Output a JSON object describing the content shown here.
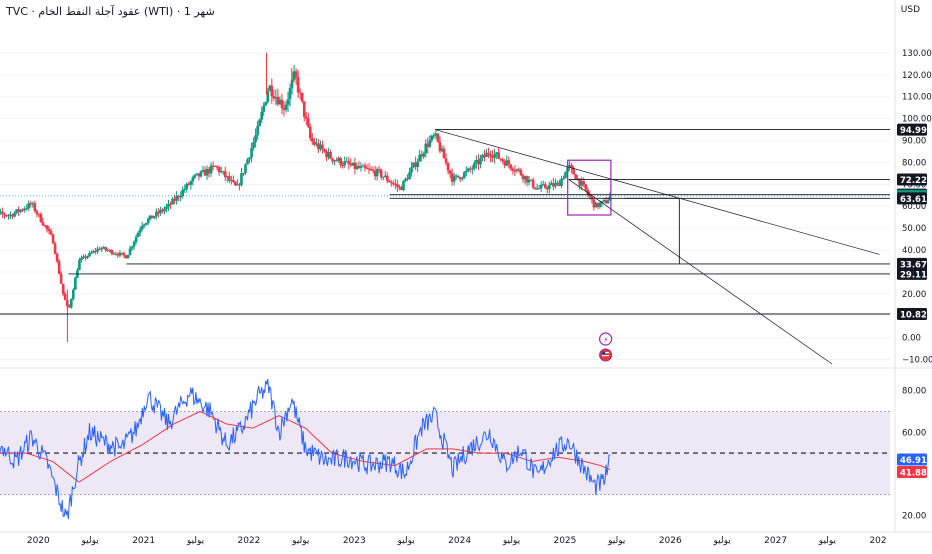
{
  "header": {
    "title": "TVC · عقود آجلة النفط الخام (WTI) · 1 شهر",
    "currency": "USD"
  },
  "colors": {
    "up": "#089981",
    "down": "#f23645",
    "rsi_line": "#2962ff",
    "rsi_ma": "#f23645",
    "rsi_band": "#ede7f6",
    "box": "#9c27b0",
    "current": "#089981"
  },
  "chart_data": [
    {
      "type": "candlestick",
      "title": "",
      "y_axis": {
        "ylim": [
          -12,
          145
        ],
        "ticks": [
          "130.00",
          "120.00",
          "110.00",
          "100.00",
          "90.00",
          "80.00",
          "70.00",
          "60.00",
          "50.00",
          "40.00",
          "30.00",
          "20.00",
          "10.00",
          "0.00",
          "−10.00"
        ],
        "tick_values": [
          130,
          120,
          110,
          100,
          90,
          80,
          70,
          60,
          50,
          40,
          30,
          20,
          10,
          0,
          -10
        ]
      },
      "x_axis": {
        "labels": [
          "2020",
          "يوليو",
          "2021",
          "يوليو",
          "2022",
          "يوليو",
          "2023",
          "يوليو",
          "2024",
          "يوليو",
          "2025",
          "يوليو",
          "2026",
          "يوليو",
          "2027",
          "يوليو",
          "202"
        ],
        "label_times": [
          2020.0,
          2020.5,
          2021.0,
          2021.5,
          2022.0,
          2022.5,
          2023.0,
          2023.5,
          2024.0,
          2024.5,
          2025.0,
          2025.5,
          2026.0,
          2026.5,
          2027.0,
          2027.5,
          2028.0
        ]
      },
      "key_points": [
        {
          "t": 2019.5,
          "v": 57
        },
        {
          "t": 2019.75,
          "v": 56
        },
        {
          "t": 2019.95,
          "v": 61
        },
        {
          "t": 2020.15,
          "v": 45
        },
        {
          "t": 2020.25,
          "v": 20
        },
        {
          "t": 2020.3,
          "v": 12
        },
        {
          "t": 2020.4,
          "v": 35
        },
        {
          "t": 2020.6,
          "v": 41
        },
        {
          "t": 2020.85,
          "v": 37
        },
        {
          "t": 2021.0,
          "v": 52
        },
        {
          "t": 2021.25,
          "v": 60
        },
        {
          "t": 2021.5,
          "v": 73
        },
        {
          "t": 2021.7,
          "v": 78
        },
        {
          "t": 2021.9,
          "v": 68
        },
        {
          "t": 2022.1,
          "v": 95
        },
        {
          "t": 2022.2,
          "v": 115
        },
        {
          "t": 2022.35,
          "v": 105
        },
        {
          "t": 2022.45,
          "v": 120
        },
        {
          "t": 2022.6,
          "v": 90
        },
        {
          "t": 2022.8,
          "v": 82
        },
        {
          "t": 2023.0,
          "v": 78
        },
        {
          "t": 2023.25,
          "v": 75
        },
        {
          "t": 2023.45,
          "v": 68
        },
        {
          "t": 2023.7,
          "v": 88
        },
        {
          "t": 2023.78,
          "v": 92
        },
        {
          "t": 2023.95,
          "v": 72
        },
        {
          "t": 2024.1,
          "v": 76
        },
        {
          "t": 2024.3,
          "v": 85
        },
        {
          "t": 2024.55,
          "v": 77
        },
        {
          "t": 2024.75,
          "v": 68
        },
        {
          "t": 2024.95,
          "v": 70
        },
        {
          "t": 2025.05,
          "v": 78
        },
        {
          "t": 2025.2,
          "v": 68
        },
        {
          "t": 2025.3,
          "v": 60
        },
        {
          "t": 2025.4,
          "v": 62
        },
        {
          "t": 2025.45,
          "v": 64.73
        }
      ],
      "wicks": [
        {
          "t": 2020.29,
          "low": -2,
          "high": 22
        },
        {
          "t": 2022.18,
          "high": 130
        },
        {
          "t": 2022.42,
          "high": 123
        }
      ],
      "price_labels": [
        {
          "text": "94.99",
          "value": 94.99,
          "kind": "level"
        },
        {
          "text": "72.22",
          "value": 72.22,
          "kind": "level"
        },
        {
          "text": "65.29",
          "value": 65.29,
          "kind": "level"
        },
        {
          "text": "64.73",
          "value": 64.73,
          "kind": "current"
        },
        {
          "text": "63.61",
          "value": 63.61,
          "kind": "level"
        },
        {
          "text": "33.67",
          "value": 33.67,
          "kind": "level"
        },
        {
          "text": "29.11",
          "value": 29.11,
          "kind": "level"
        },
        {
          "text": "10.82",
          "value": 10.82,
          "kind": "level"
        }
      ],
      "horizontal_levels": [
        {
          "from_t": 2023.78,
          "value": 94.99
        },
        {
          "from_t": 2025.05,
          "value": 72.22
        },
        {
          "from_t": 2023.35,
          "value": 65.29
        },
        {
          "from_t": 2023.35,
          "value": 63.61
        },
        {
          "from_t": 2020.85,
          "value": 33.67
        },
        {
          "from_t": 2020.3,
          "value": 29.11
        },
        {
          "from_t": 2019.5,
          "value": 10.82
        }
      ],
      "trend_lines": [
        {
          "t1": 2023.78,
          "v1": 94.99,
          "t2": 2028.0,
          "v2": 38
        },
        {
          "t1": 2025.05,
          "v1": 72.22,
          "t2": 2027.55,
          "v2": -12
        }
      ],
      "measure_line": {
        "t": 2026.1,
        "v1": 63.61,
        "v2": 33.67
      },
      "highlight_box": {
        "t1": 2025.04,
        "t2": 2025.45,
        "v1": 56,
        "v2": 81
      },
      "icons": [
        "lightning-icon",
        "us-flag-icon"
      ]
    },
    {
      "type": "line",
      "name": "RSI",
      "y_axis": {
        "ylim": [
          14,
          88
        ],
        "ticks": [
          "80.00",
          "60.00",
          "20.00"
        ],
        "tick_values": [
          80,
          60,
          20
        ],
        "band": [
          30,
          70
        ],
        "mid": 50
      },
      "series": [
        {
          "values_key_points": [
            {
              "t": 2019.5,
              "v": 48
            },
            {
              "t": 2019.65,
              "v": 54
            },
            {
              "t": 2019.8,
              "v": 46
            },
            {
              "t": 2019.95,
              "v": 58
            },
            {
              "t": 2020.1,
              "v": 45
            },
            {
              "t": 2020.2,
              "v": 30
            },
            {
              "t": 2020.28,
              "v": 18
            },
            {
              "t": 2020.38,
              "v": 42
            },
            {
              "t": 2020.5,
              "v": 60
            },
            {
              "t": 2020.65,
              "v": 55
            },
            {
              "t": 2020.8,
              "v": 52
            },
            {
              "t": 2020.95,
              "v": 62
            },
            {
              "t": 2021.05,
              "v": 78
            },
            {
              "t": 2021.25,
              "v": 64
            },
            {
              "t": 2021.45,
              "v": 79
            },
            {
              "t": 2021.65,
              "v": 70
            },
            {
              "t": 2021.8,
              "v": 54
            },
            {
              "t": 2021.95,
              "v": 62
            },
            {
              "t": 2022.1,
              "v": 77
            },
            {
              "t": 2022.2,
              "v": 82
            },
            {
              "t": 2022.3,
              "v": 60
            },
            {
              "t": 2022.42,
              "v": 76
            },
            {
              "t": 2022.55,
              "v": 52
            },
            {
              "t": 2022.75,
              "v": 46
            },
            {
              "t": 2022.95,
              "v": 48
            },
            {
              "t": 2023.15,
              "v": 44
            },
            {
              "t": 2023.35,
              "v": 46
            },
            {
              "t": 2023.5,
              "v": 40
            },
            {
              "t": 2023.65,
              "v": 62
            },
            {
              "t": 2023.78,
              "v": 68
            },
            {
              "t": 2023.95,
              "v": 42
            },
            {
              "t": 2024.1,
              "v": 52
            },
            {
              "t": 2024.3,
              "v": 60
            },
            {
              "t": 2024.45,
              "v": 44
            },
            {
              "t": 2024.6,
              "v": 52
            },
            {
              "t": 2024.75,
              "v": 38
            },
            {
              "t": 2024.9,
              "v": 50
            },
            {
              "t": 2025.05,
              "v": 56
            },
            {
              "t": 2025.2,
              "v": 42
            },
            {
              "t": 2025.3,
              "v": 34
            },
            {
              "t": 2025.38,
              "v": 36
            },
            {
              "t": 2025.45,
              "v": 46.91
            }
          ],
          "last_label": "46.91"
        },
        {
          "name": "MA",
          "values_key_points": [
            {
              "t": 2019.5,
              "v": 50
            },
            {
              "t": 2019.9,
              "v": 50
            },
            {
              "t": 2020.15,
              "v": 46
            },
            {
              "t": 2020.4,
              "v": 36
            },
            {
              "t": 2020.7,
              "v": 46
            },
            {
              "t": 2021.0,
              "v": 54
            },
            {
              "t": 2021.3,
              "v": 64
            },
            {
              "t": 2021.55,
              "v": 70
            },
            {
              "t": 2021.8,
              "v": 64
            },
            {
              "t": 2022.05,
              "v": 62
            },
            {
              "t": 2022.3,
              "v": 68
            },
            {
              "t": 2022.55,
              "v": 62
            },
            {
              "t": 2022.8,
              "v": 50
            },
            {
              "t": 2023.1,
              "v": 46
            },
            {
              "t": 2023.4,
              "v": 44
            },
            {
              "t": 2023.7,
              "v": 52
            },
            {
              "t": 2023.95,
              "v": 52
            },
            {
              "t": 2024.2,
              "v": 50
            },
            {
              "t": 2024.45,
              "v": 50
            },
            {
              "t": 2024.7,
              "v": 46
            },
            {
              "t": 2024.95,
              "v": 48
            },
            {
              "t": 2025.2,
              "v": 46
            },
            {
              "t": 2025.35,
              "v": 44
            },
            {
              "t": 2025.45,
              "v": 41.88
            }
          ],
          "last_label": "41.88"
        }
      ]
    }
  ]
}
